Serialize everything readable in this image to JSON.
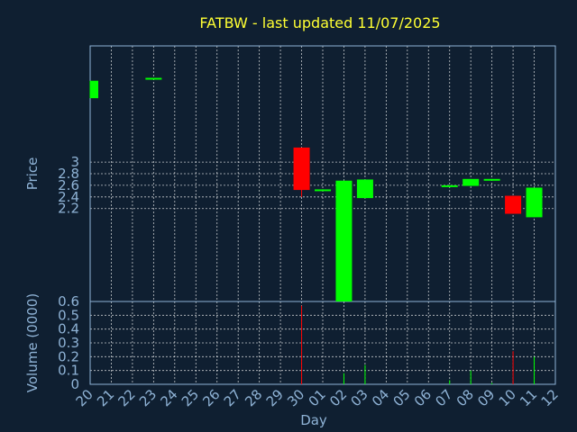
{
  "chart_data": {
    "type": "candlestick",
    "title": "FATBW - last updated 11/07/2025",
    "xlabel": "Day",
    "x_ticks": [
      "20",
      "21",
      "22",
      "23",
      "24",
      "25",
      "26",
      "27",
      "28",
      "29",
      "30",
      "01",
      "02",
      "03",
      "04",
      "05",
      "06",
      "07",
      "08",
      "09",
      "10",
      "11",
      "12"
    ],
    "price_panel": {
      "ylabel": "Price",
      "yticks": [
        2.2,
        2.4,
        2.6,
        2.8,
        3
      ],
      "ylim": [
        0.6,
        5.0
      ],
      "grid": true
    },
    "volume_panel": {
      "ylabel": "Volume (0000)",
      "yticks": [
        0,
        0.1,
        0.2,
        0.3,
        0.4,
        0.5,
        0.6
      ],
      "ylim": [
        0,
        0.6
      ],
      "grid": true
    },
    "colors": {
      "up": "#00ff00",
      "down": "#ff0000",
      "background": "#0f1f31",
      "title": "#ffff33",
      "axis": "#8fb3d6"
    },
    "candles": [
      {
        "day": "20",
        "open": 4.1,
        "close": 4.4,
        "high": 4.4,
        "low": 4.1,
        "volume": 0.0
      },
      {
        "day": "23",
        "open": 4.43,
        "close": 4.45,
        "high": 4.45,
        "low": 4.43,
        "volume": 0.0
      },
      {
        "day": "30",
        "open": 3.25,
        "close": 2.52,
        "high": 3.25,
        "low": 2.4,
        "volume": 0.57
      },
      {
        "day": "01",
        "open": 2.51,
        "close": 2.53,
        "high": 2.53,
        "low": 2.51,
        "volume": 0.0
      },
      {
        "day": "02",
        "open": 0.6,
        "close": 2.68,
        "high": 2.68,
        "low": 0.6,
        "volume": 0.08
      },
      {
        "day": "03",
        "open": 2.38,
        "close": 2.7,
        "high": 2.7,
        "low": 2.38,
        "volume": 0.14
      },
      {
        "day": "07",
        "open": 2.58,
        "close": 2.6,
        "high": 2.6,
        "low": 2.58,
        "volume": 0.03
      },
      {
        "day": "08",
        "open": 2.59,
        "close": 2.71,
        "high": 2.71,
        "low": 2.59,
        "volume": 0.1
      },
      {
        "day": "09",
        "open": 2.69,
        "close": 2.71,
        "high": 2.71,
        "low": 2.69,
        "volume": 0.01
      },
      {
        "day": "10",
        "open": 2.42,
        "close": 2.11,
        "high": 2.42,
        "low": 2.11,
        "volume": 0.24
      },
      {
        "day": "11",
        "open": 2.05,
        "close": 2.56,
        "high": 2.56,
        "low": 2.05,
        "volume": 0.2
      }
    ]
  }
}
